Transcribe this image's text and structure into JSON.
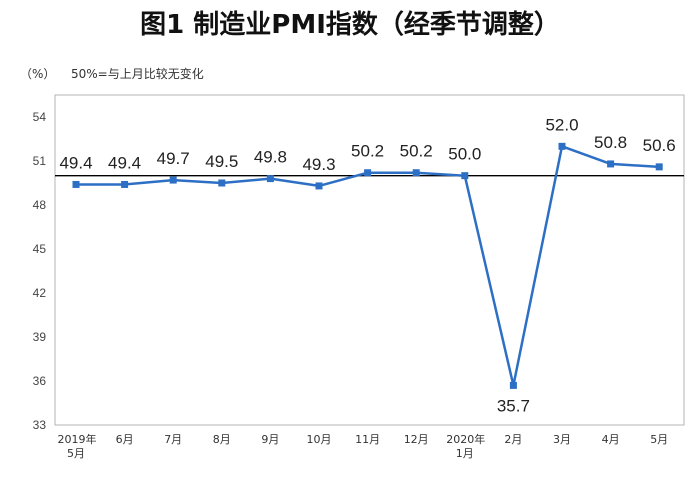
{
  "chart_data": {
    "type": "line",
    "title": "图1 制造业PMI指数（经季节调整）",
    "ylabel": "（%）",
    "annotation": "50%=与上月比较无变化",
    "ylim": [
      33,
      55.5
    ],
    "yticks": [
      "33",
      "36",
      "39",
      "42",
      "45",
      "48",
      "51",
      "54"
    ],
    "reference_line": 50,
    "categories": [
      [
        "2019年",
        "5月"
      ],
      [
        "6月"
      ],
      [
        "7月"
      ],
      [
        "8月"
      ],
      [
        "9月"
      ],
      [
        "10月"
      ],
      [
        "11月"
      ],
      [
        "12月"
      ],
      [
        "2020年",
        "1月"
      ],
      [
        "2月"
      ],
      [
        "3月"
      ],
      [
        "4月"
      ],
      [
        "5月"
      ]
    ],
    "values": [
      49.4,
      49.4,
      49.7,
      49.5,
      49.8,
      49.3,
      50.2,
      50.2,
      50.0,
      35.7,
      52.0,
      50.8,
      50.6
    ],
    "value_labels": [
      "49.4",
      "49.4",
      "49.7",
      "49.5",
      "49.8",
      "49.3",
      "50.2",
      "50.2",
      "50.0",
      "35.7",
      "52.0",
      "50.8",
      "50.6"
    ],
    "colors": {
      "line": "#2d6fc5",
      "marker": "#2d6fc5",
      "axis": "#000000",
      "frame": "#b5b5b5"
    },
    "grid": false
  }
}
